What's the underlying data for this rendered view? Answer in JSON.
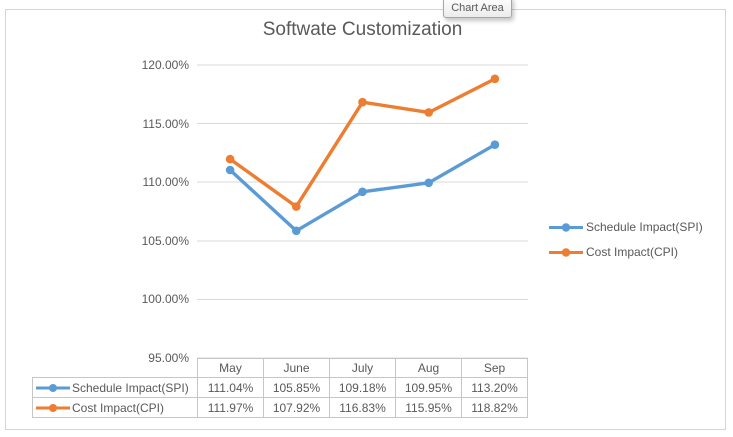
{
  "tooltip": {
    "label": "Chart Area"
  },
  "chart_data": {
    "type": "line",
    "title": "Softwate Customization",
    "categories": [
      "May",
      "June",
      "July",
      "Aug",
      "Sep"
    ],
    "series": [
      {
        "name": "Schedule Impact(SPI)",
        "color": "#5B9BD5",
        "values": [
          111.04,
          105.85,
          109.18,
          109.95,
          113.2
        ]
      },
      {
        "name": "Cost Impact(CPI)",
        "color": "#ED7D31",
        "values": [
          111.97,
          107.92,
          116.83,
          115.95,
          118.82
        ]
      }
    ],
    "ylim": [
      95,
      120
    ],
    "ytick_step": 5,
    "ytick_labels": [
      "120.00%",
      "115.00%",
      "110.00%",
      "105.00%",
      "100.00%",
      "95.00%"
    ],
    "grid": true,
    "legend_position": "right",
    "marker": "circle",
    "gridline_color": "#D9D9D9"
  },
  "table": {
    "columns": [
      "May",
      "June",
      "July",
      "Aug",
      "Sep"
    ],
    "row_labels": [
      "Schedule Impact(SPI)",
      "Cost Impact(CPI)"
    ],
    "rows": [
      [
        "111.04%",
        "105.85%",
        "109.18%",
        "109.95%",
        "113.20%"
      ],
      [
        "111.97%",
        "107.92%",
        "116.83%",
        "115.95%",
        "118.82%"
      ]
    ]
  }
}
